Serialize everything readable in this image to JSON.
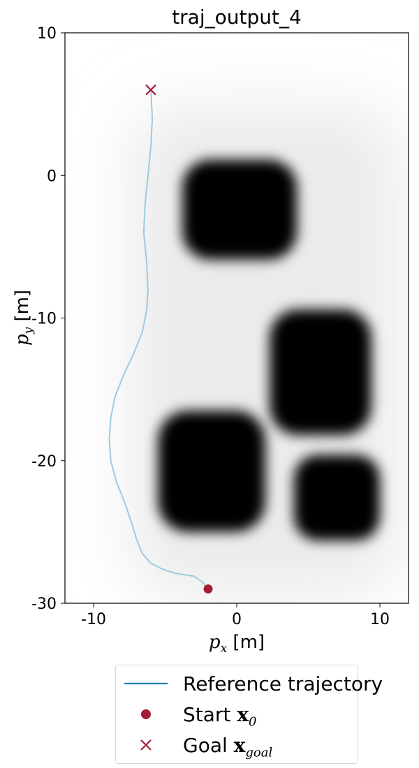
{
  "chart_data": {
    "type": "line",
    "title": "traj_output_4",
    "xlabel": "p_x [m]",
    "ylabel": "p_y [m]",
    "xlim": [
      -12,
      12
    ],
    "ylim": [
      -30,
      10
    ],
    "xticks": [
      -10,
      0,
      10
    ],
    "yticks": [
      10,
      0,
      -10,
      -20,
      -30
    ],
    "xtick_labels": [
      "-10",
      "0",
      "10"
    ],
    "ytick_labels": [
      "10",
      "0",
      "-10",
      "-20",
      "-30"
    ],
    "grid": false,
    "legend_position": "bottom-center-outside",
    "series": [
      {
        "name": "Reference trajectory",
        "kind": "line",
        "color": "#9ecae1",
        "x": [
          -6.0,
          -5.9,
          -6.0,
          -6.2,
          -6.4,
          -6.5,
          -6.3,
          -6.2,
          -6.3,
          -6.6,
          -7.2,
          -7.9,
          -8.5,
          -8.8,
          -8.9,
          -8.8,
          -8.4,
          -7.8,
          -7.3,
          -7.0,
          -6.6,
          -6.0,
          -5.2,
          -4.3,
          -3.0,
          -2.4,
          -2.1,
          -2.0
        ],
        "y": [
          6.0,
          4.0,
          2.0,
          0.0,
          -2.0,
          -4.0,
          -6.0,
          -8.0,
          -9.5,
          -11.0,
          -12.5,
          -14.0,
          -15.5,
          -17.0,
          -18.5,
          -20.0,
          -21.5,
          -23.0,
          -24.5,
          -25.5,
          -26.5,
          -27.2,
          -27.6,
          -27.9,
          -28.1,
          -28.5,
          -28.9,
          -29.0
        ]
      },
      {
        "name": "Start",
        "kind": "point",
        "marker": "o",
        "color": "#a51c36",
        "x": [
          -2.0
        ],
        "y": [
          -29.0
        ]
      },
      {
        "name": "Goal",
        "kind": "point",
        "marker": "x",
        "color": "#a51c36",
        "x": [
          -6.0
        ],
        "y": [
          6.0
        ]
      }
    ],
    "obstacles": [
      {
        "shape": "blob",
        "x_range": [
          -3.8,
          4.2
        ],
        "y_range": [
          -5.9,
          1.1
        ]
      },
      {
        "shape": "blob",
        "x_range": [
          2.3,
          9.4
        ],
        "y_range": [
          -18.2,
          -9.4
        ]
      },
      {
        "shape": "blob",
        "x_range": [
          -5.5,
          2.0
        ],
        "y_range": [
          -25.0,
          -16.5
        ]
      },
      {
        "shape": "blob",
        "x_range": [
          4.0,
          10.0
        ],
        "y_range": [
          -25.6,
          -19.6
        ]
      }
    ]
  },
  "legend": {
    "reference": "Reference trajectory",
    "start_label": "Start",
    "start_symbol": "x",
    "start_sub": "0",
    "goal_label": "Goal",
    "goal_symbol": "x",
    "goal_sub": "goal",
    "line_color": "#1f77b4",
    "marker_color": "#a51c36"
  }
}
